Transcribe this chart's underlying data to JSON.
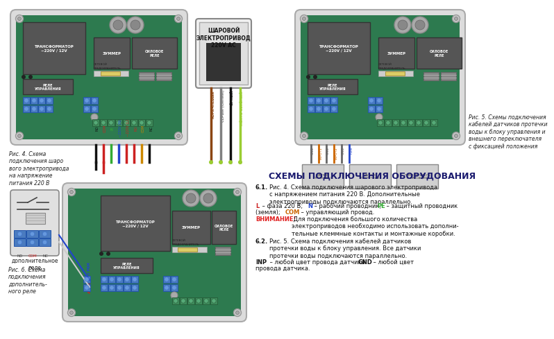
{
  "title": "СХЕМЫ ПОДКЛЮЧЕНИЯ ОБОРУДОВАНИЯ",
  "bg_color": "#ffffff",
  "board_bg": "#2d7a4f",
  "case_color": "#dcdcdc",
  "case_border": "#aaaaaa",
  "heading_color": "#1a1a6e",
  "warning_color": "#e02020",
  "fig4_caption": "Рис. 4. Схема\nподключения шаро\nвого электропривода\nна напряжение\nпитания 220 В",
  "fig5_caption": "Рис. 5. Схемы подключения\nкабелей датчиков протечки\nводы к блоку управления и\nвнешнего переключателя\nс фиксацией положения",
  "fig6_caption": "Рис. 6. Схема\nподключения\nдополнитель-\nного реле",
  "terminal_labels_fig4": [
    "NO",
    "COM",
    "PE",
    "~220V (N)",
    "~220V (L)",
    "NO",
    "COM",
    "NC"
  ],
  "terminal_labels_fig5_top": [
    "GND",
    "INPUT1",
    "GND",
    "INPUT2",
    "GND",
    "FUN"
  ],
  "terminal_labels_fig6": [
    "NO",
    "COM",
    "NC"
  ],
  "sensor_labels": [
    "ДАТЧИК\nПРОТЕЧКИ 1",
    "ДАТЧИК\nПРОТЕЧКИ 2",
    "ПЕРЕКЛЮЧАТЕЛЬ\nС ФИКСАЦИЕЙ"
  ],
  "ball_valve_label": "ШАРОВОЙ\nЭЛЕКТРОПРИВОД\n220V AC",
  "transformer_label": "ТРАНСФОРМАТОР\n~220V / 12V",
  "buzzer_label": "ЗУММЕР",
  "relay_label": "СИЛОВОЕ\nРЕЛЕ",
  "control_relay_label": "РЕЛЕ\nУПРАВЛЕНИЯ",
  "fuse_label": "СЕТЕВОЙ\nПРЕДОХРАНИТЕЛЬ",
  "add_relay_label": "ДОПОЛНИТЕЛЬНОЕ\nРЕЛЕ"
}
